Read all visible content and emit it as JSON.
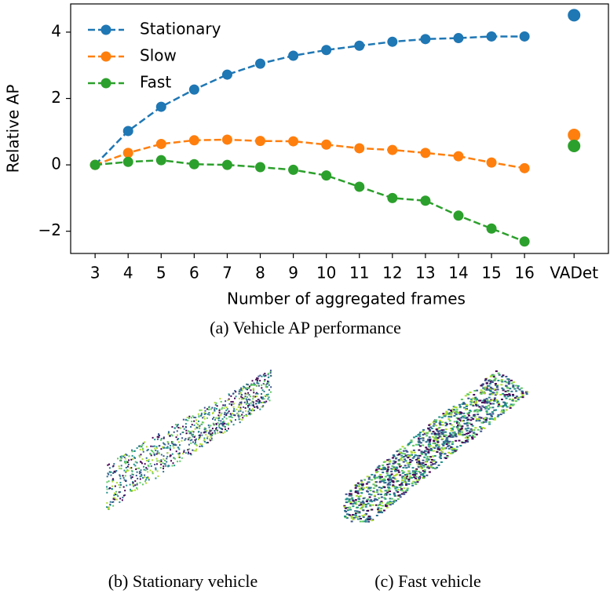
{
  "chart_data": {
    "type": "line",
    "caption": "(a) Vehicle AP performance",
    "x_label": "Number of aggregated frames",
    "y_label": "Relative AP",
    "x": [
      3,
      4,
      5,
      6,
      7,
      8,
      9,
      10,
      11,
      12,
      13,
      14,
      15,
      16
    ],
    "xlim": [
      2.26,
      18.54
    ],
    "xticks": [
      3,
      4,
      5,
      6,
      7,
      8,
      9,
      10,
      11,
      12,
      13,
      14,
      15,
      16,
      {
        "value": 17.5,
        "label": "VADet"
      }
    ],
    "ylim": [
      -2.67,
      4.85
    ],
    "yticks": [
      {
        "value": -2,
        "label": "−2"
      },
      0,
      2,
      4
    ],
    "legend": "upper left",
    "series": [
      {
        "name": "Stationary",
        "color": "#1f77b4",
        "values": [
          0,
          1.02,
          1.75,
          2.27,
          2.72,
          3.05,
          3.29,
          3.46,
          3.59,
          3.71,
          3.79,
          3.82,
          3.87,
          3.87
        ],
        "extra_point": {
          "x": 17.5,
          "y": 4.51
        }
      },
      {
        "name": "Slow",
        "color": "#ff7f0e",
        "values": [
          0,
          0.36,
          0.63,
          0.74,
          0.76,
          0.72,
          0.71,
          0.61,
          0.5,
          0.45,
          0.36,
          0.26,
          0.07,
          -0.1
        ],
        "extra_point": {
          "x": 17.5,
          "y": 0.9
        }
      },
      {
        "name": "Fast",
        "color": "#2ca02c",
        "values": [
          0,
          0.09,
          0.14,
          0.02,
          0.0,
          -0.07,
          -0.15,
          -0.32,
          -0.66,
          -1.0,
          -1.08,
          -1.53,
          -1.92,
          -2.31
        ],
        "extra_point": {
          "x": 17.5,
          "y": 0.57
        }
      }
    ]
  },
  "subfigures": [
    {
      "caption": "(b) Stationary vehicle"
    },
    {
      "caption": "(c) Fast vehicle"
    }
  ]
}
